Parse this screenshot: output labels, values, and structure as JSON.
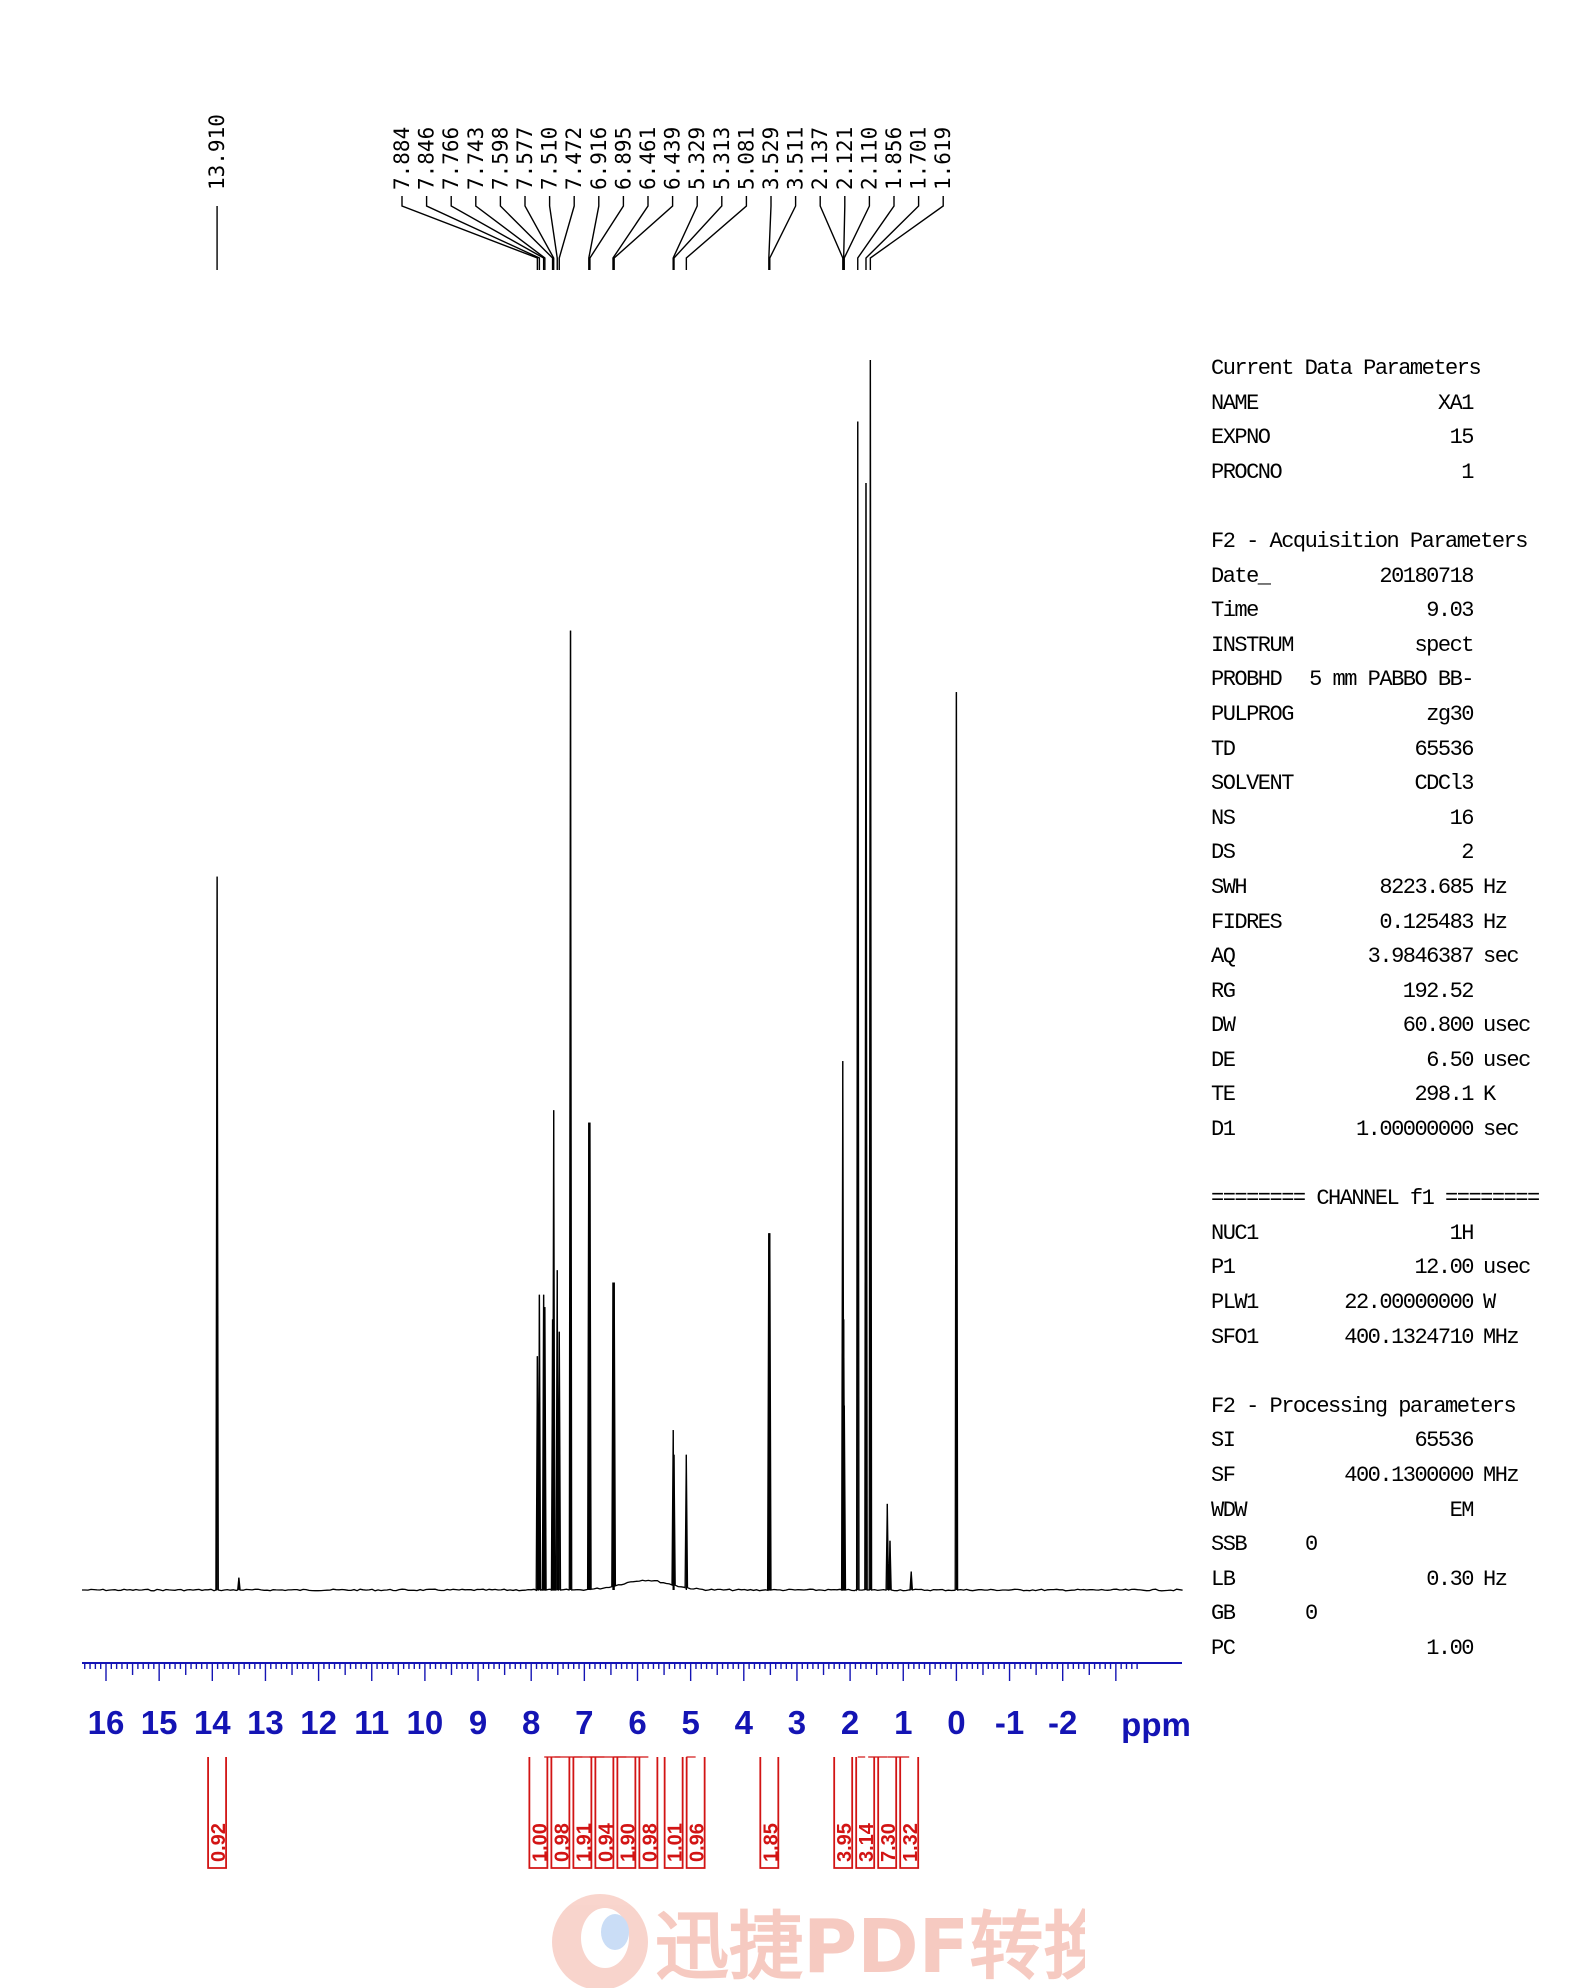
{
  "chart_data": {
    "type": "line",
    "subtype": "1H NMR spectrum",
    "x_axis": {
      "unit_label": "ppm",
      "min": -2,
      "max": 16,
      "reversed": true,
      "tick_labels": [
        "16",
        "15",
        "14",
        "13",
        "12",
        "11",
        "10",
        "9",
        "8",
        "7",
        "6",
        "5",
        "4",
        "3",
        "2",
        "1",
        "0",
        "-1",
        "-2"
      ]
    },
    "peak_labels": [
      "13.910",
      "7.884",
      "7.846",
      "7.766",
      "7.743",
      "7.598",
      "7.577",
      "7.510",
      "7.472",
      "6.916",
      "6.895",
      "6.461",
      "6.439",
      "5.329",
      "5.313",
      "5.081",
      "3.529",
      "3.511",
      "2.137",
      "2.121",
      "2.110",
      "1.856",
      "1.701",
      "1.619"
    ],
    "peaks": [
      {
        "ppm": 13.91,
        "height": 0.58
      },
      {
        "ppm": 13.5,
        "height": 0.01
      },
      {
        "ppm": 7.884,
        "height": 0.19
      },
      {
        "ppm": 7.846,
        "height": 0.24
      },
      {
        "ppm": 7.766,
        "height": 0.24
      },
      {
        "ppm": 7.743,
        "height": 0.23
      },
      {
        "ppm": 7.598,
        "height": 0.22
      },
      {
        "ppm": 7.577,
        "height": 0.39
      },
      {
        "ppm": 7.51,
        "height": 0.26
      },
      {
        "ppm": 7.472,
        "height": 0.21
      },
      {
        "ppm": 7.26,
        "height": 0.78
      },
      {
        "ppm": 6.916,
        "height": 0.38
      },
      {
        "ppm": 6.895,
        "height": 0.38
      },
      {
        "ppm": 6.461,
        "height": 0.25
      },
      {
        "ppm": 6.439,
        "height": 0.25
      },
      {
        "ppm": 5.329,
        "height": 0.13
      },
      {
        "ppm": 5.313,
        "height": 0.11
      },
      {
        "ppm": 5.081,
        "height": 0.11
      },
      {
        "ppm": 3.529,
        "height": 0.29
      },
      {
        "ppm": 3.511,
        "height": 0.29
      },
      {
        "ppm": 2.137,
        "height": 0.43
      },
      {
        "ppm": 2.121,
        "height": 0.22
      },
      {
        "ppm": 2.11,
        "height": 0.15
      },
      {
        "ppm": 1.856,
        "height": 0.95
      },
      {
        "ppm": 1.701,
        "height": 0.9
      },
      {
        "ppm": 1.619,
        "height": 1.0
      },
      {
        "ppm": 1.3,
        "height": 0.07
      },
      {
        "ppm": 1.25,
        "height": 0.04
      },
      {
        "ppm": 0.85,
        "height": 0.015
      },
      {
        "ppm": 0.0,
        "height": 0.73
      }
    ],
    "broad_humps": [
      {
        "ppm": 5.85,
        "height": 0.008,
        "width": 0.45
      }
    ],
    "integrals": [
      {
        "value": "0.92",
        "ppm": 13.91
      },
      {
        "value": "1.00",
        "ppm": 7.865
      },
      {
        "value": "0.98",
        "ppm": 7.755
      },
      {
        "value": "1.91",
        "ppm": 7.56
      },
      {
        "value": "0.94",
        "ppm": 7.2
      },
      {
        "value": "1.90",
        "ppm": 6.905
      },
      {
        "value": "0.98",
        "ppm": 6.45
      },
      {
        "value": "1.01",
        "ppm": 5.32
      },
      {
        "value": "0.96",
        "ppm": 5.08
      },
      {
        "value": "1.85",
        "ppm": 3.52
      },
      {
        "value": "3.95",
        "ppm": 2.13
      },
      {
        "value": "3.14",
        "ppm": 1.856
      },
      {
        "value": "7.30",
        "ppm": 1.66
      },
      {
        "value": "1.32",
        "ppm": 1.3
      }
    ],
    "colors": {
      "spectrum": "#000000",
      "axis": "#1414b4",
      "integral": "#d21414",
      "peak_label": "#000000"
    }
  },
  "params": {
    "current": {
      "heading": "Current Data Parameters",
      "rows": [
        {
          "k": "NAME",
          "v": "XA1"
        },
        {
          "k": "EXPNO",
          "v": "15"
        },
        {
          "k": "PROCNO",
          "v": "1"
        }
      ]
    },
    "acq": {
      "heading": "F2 - Acquisition Parameters",
      "rows": [
        {
          "k": "Date_",
          "v": "20180718"
        },
        {
          "k": "Time",
          "v": "9.03"
        },
        {
          "k": "INSTRUM",
          "v": "spect"
        },
        {
          "k": "PROBHD",
          "v": "5 mm PABBO BB-"
        },
        {
          "k": "PULPROG",
          "v": "zg30"
        },
        {
          "k": "TD",
          "v": "65536"
        },
        {
          "k": "SOLVENT",
          "v": "CDCl3"
        },
        {
          "k": "NS",
          "v": "16"
        },
        {
          "k": "DS",
          "v": "2"
        },
        {
          "k": "SWH",
          "v": "8223.685",
          "u": "Hz"
        },
        {
          "k": "FIDRES",
          "v": "0.125483",
          "u": "Hz"
        },
        {
          "k": "AQ",
          "v": "3.9846387",
          "u": "sec"
        },
        {
          "k": "RG",
          "v": "192.52"
        },
        {
          "k": "DW",
          "v": "60.800",
          "u": "usec"
        },
        {
          "k": "DE",
          "v": "6.50",
          "u": "usec"
        },
        {
          "k": "TE",
          "v": "298.1",
          "u": "K"
        },
        {
          "k": "D1",
          "v": "1.00000000",
          "u": "sec"
        }
      ]
    },
    "channel": {
      "heading": "======== CHANNEL f1 ========",
      "rows": [
        {
          "k": "NUC1",
          "v": "1H"
        },
        {
          "k": "P1",
          "v": "12.00",
          "u": "usec"
        },
        {
          "k": "PLW1",
          "v": "22.00000000",
          "u": "W"
        },
        {
          "k": "SFO1",
          "v": "400.1324710",
          "u": "MHz"
        }
      ]
    },
    "proc": {
      "heading": "F2 - Processing parameters",
      "rows": [
        {
          "k": "SI",
          "v": "65536"
        },
        {
          "k": "SF",
          "v": "400.1300000",
          "u": "MHz"
        },
        {
          "k": "WDW",
          "v": "EM"
        },
        {
          "k": "SSB",
          "vl": "0"
        },
        {
          "k": "LB",
          "v": "0.30",
          "u": "Hz"
        },
        {
          "k": "GB",
          "vl": "0"
        },
        {
          "k": "PC",
          "v": "1.00"
        }
      ]
    }
  },
  "watermark": {
    "text": "迅捷PDF转换器",
    "color": "#f0a090"
  }
}
